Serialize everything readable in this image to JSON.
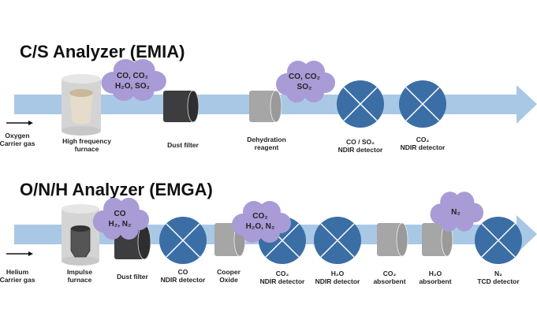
{
  "colors": {
    "pipe": "#a9c8e6",
    "detector": "#3a6ea5",
    "cloud": "#a99bd6",
    "dust_filter": "#3d3d40",
    "reagent": "#a6a6a6",
    "furnace": "#d4d4d4"
  },
  "emia": {
    "title": "C/S Analyzer (EMIA)",
    "carrier": [
      "Oxygen",
      "Carrier gas"
    ],
    "furnace": [
      "High frequency",
      "furnace"
    ],
    "cloud1": [
      "CO, CO₂",
      "H₂O, SO₂"
    ],
    "dust_filter": "Dust filter",
    "dehydration": [
      "Dehydration",
      "reagent"
    ],
    "cloud2": [
      "CO, CO₂",
      "SO₂"
    ],
    "det1": [
      "CO / SO₂",
      "NDIR detector"
    ],
    "det2": [
      "CO₂",
      "NDIR detector"
    ]
  },
  "emga": {
    "title": "O/N/H Analyzer (EMGA)",
    "carrier": [
      "Helium",
      "Carrier gas"
    ],
    "furnace": [
      "Impulse",
      "furnace"
    ],
    "cloud1": [
      "CO",
      "H₂, N₂"
    ],
    "dust_filter": "Dust filter",
    "det_co": [
      "CO",
      "NDIR detector"
    ],
    "cooper": [
      "Cooper",
      "Oxide"
    ],
    "cloud2": [
      "CO₂",
      "H₂O, N₂"
    ],
    "det_co2": [
      "CO₂",
      "NDIR detector"
    ],
    "det_h2o": [
      "H₂O",
      "NDIR detector"
    ],
    "co2_abs": [
      "CO₂",
      "absorbent"
    ],
    "h2o_abs": [
      "H₂O",
      "absorbent"
    ],
    "cloud3": [
      "N₂"
    ],
    "det_tcd": [
      "N₂",
      "TCD detector"
    ]
  }
}
